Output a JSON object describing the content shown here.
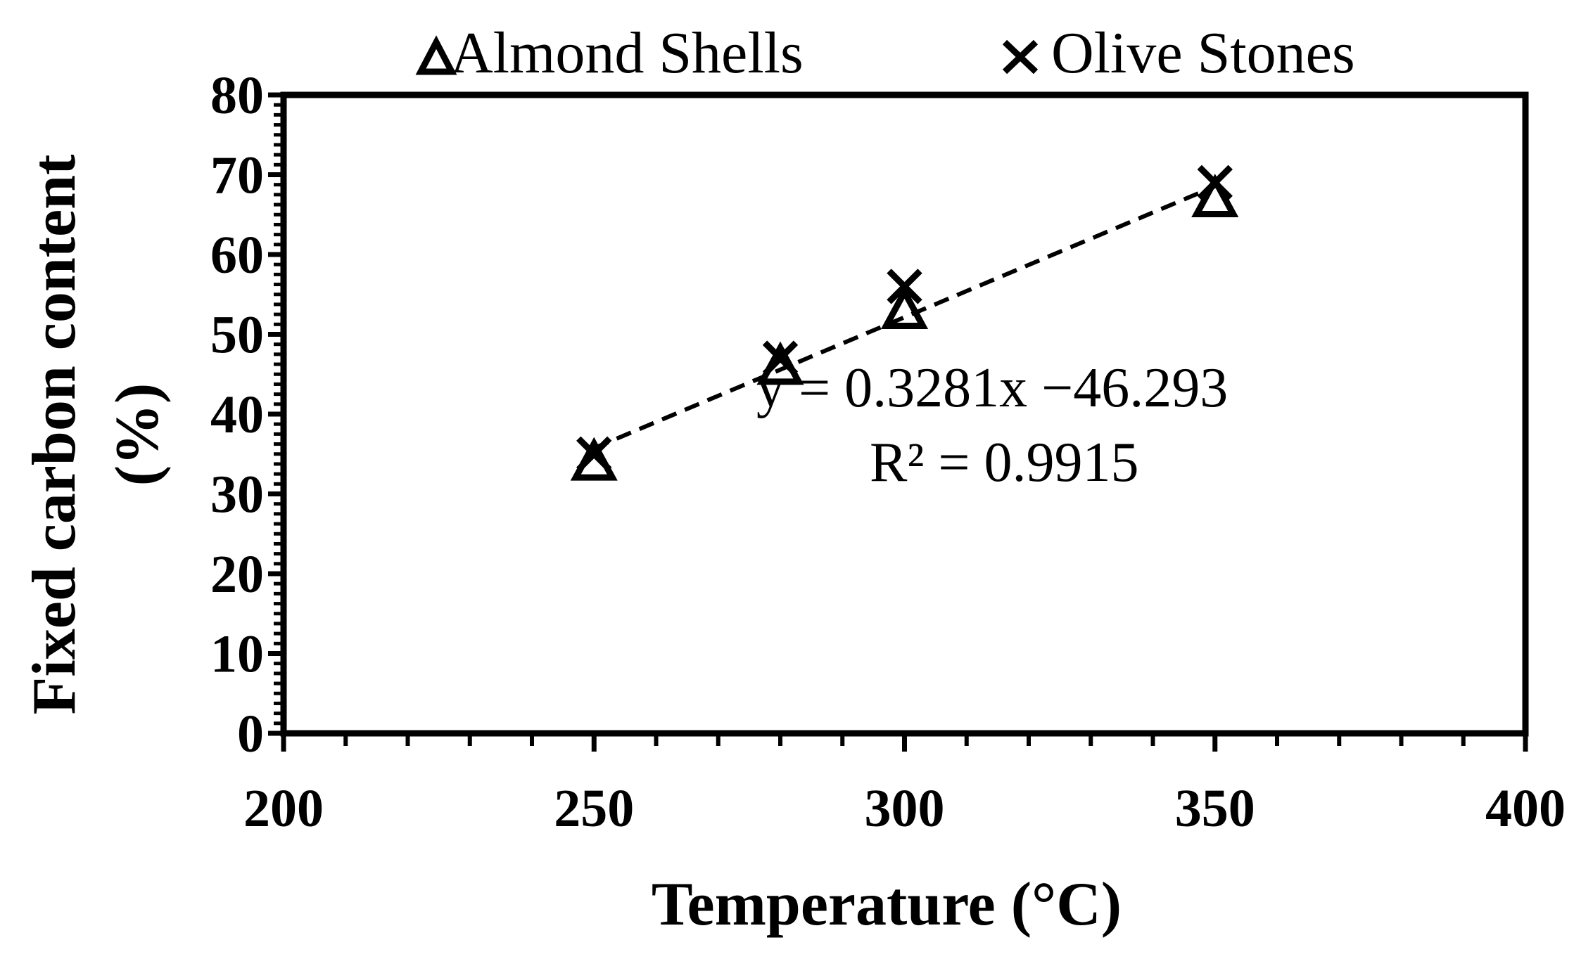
{
  "chart_data": {
    "type": "scatter",
    "title": "",
    "xlabel": "Temperature (°C)",
    "ylabel_lines": [
      "Fixed carbon content",
      "(%)"
    ],
    "xlim": [
      200,
      400
    ],
    "ylim": [
      0,
      80
    ],
    "x_ticks": [
      "200",
      "250",
      "300",
      "350",
      "400"
    ],
    "y_ticks": [
      "0",
      "10",
      "20",
      "30",
      "40",
      "50",
      "60",
      "70",
      "80"
    ],
    "grid": false,
    "legend_placement": "top",
    "series": [
      {
        "name": "Almond Shells",
        "marker": "triangle",
        "x": [
          250,
          280,
          300,
          350
        ],
        "y": [
          34,
          46,
          53,
          67
        ]
      },
      {
        "name": "Olive Stones",
        "marker": "x",
        "x": [
          250,
          280,
          300,
          350
        ],
        "y": [
          35,
          47,
          56,
          69
        ]
      }
    ],
    "trendline": {
      "style": "dashed",
      "slope": 0.3281,
      "intercept": -46.293,
      "x_range": [
        250,
        350
      ],
      "equation": "y = 0.3281x −46.293",
      "r_squared": "R² = 0.9915"
    },
    "colors": {
      "ink": "#000000",
      "background": "#ffffff"
    }
  }
}
